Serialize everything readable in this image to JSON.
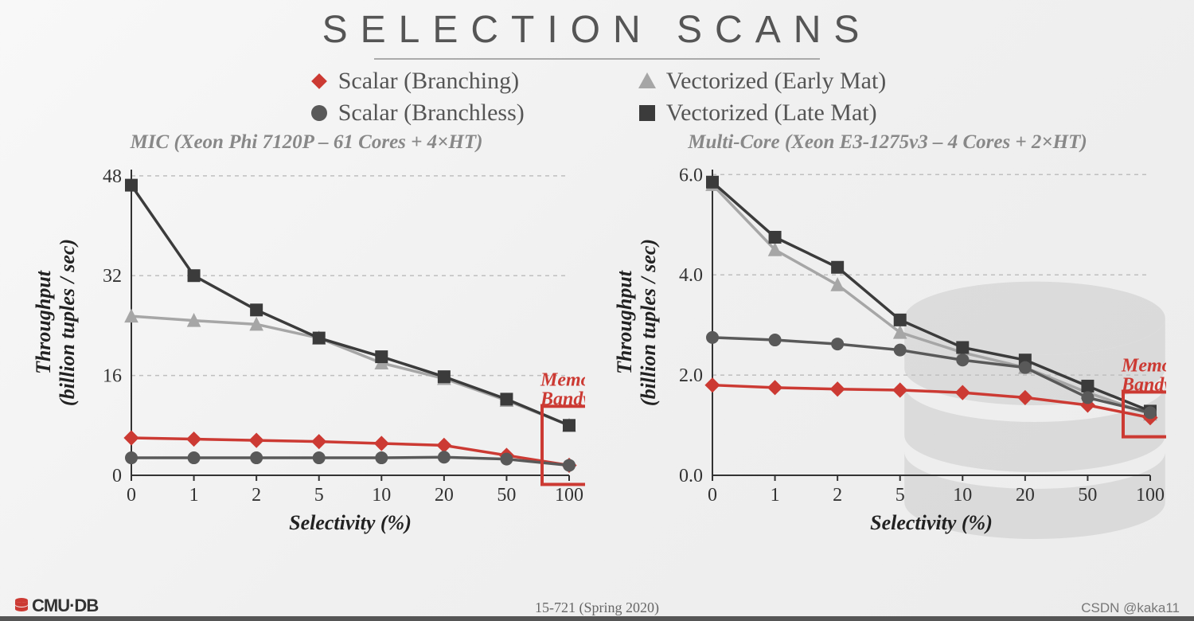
{
  "title": "SELECTION SCANS",
  "legend": [
    {
      "label": "Scalar (Branching)",
      "marker": "diamond",
      "color": "#cc3a33"
    },
    {
      "label": "Scalar (Branchless)",
      "marker": "circle",
      "color": "#595959"
    },
    {
      "label": "Vectorized (Early Mat)",
      "marker": "triangle",
      "color": "#a6a6a6"
    },
    {
      "label": "Vectorized (Late Mat)",
      "marker": "square",
      "color": "#3b3b3b"
    }
  ],
  "x_categories": [
    "0",
    "1",
    "2",
    "5",
    "10",
    "20",
    "50",
    "100"
  ],
  "x_axis_label": "Selectivity (%)",
  "y_axis_label": "Throughput\n(billion tuples / sec)",
  "annotation": {
    "line1": "Memory",
    "line2": "Bandwidth",
    "color": "#cc3a33",
    "box_stroke_width": 4
  },
  "charts": {
    "left": {
      "subtitle": "MIC (Xeon Phi 7120P – 61 Cores + 4×HT)",
      "y_ticks": [
        0,
        16,
        32,
        48
      ],
      "ylim": [
        0,
        49
      ],
      "series": {
        "scalar_branching": {
          "color": "#cc3a33",
          "marker": "diamond",
          "line_width": 3.5,
          "values": [
            6.0,
            5.8,
            5.6,
            5.4,
            5.1,
            4.8,
            3.2,
            1.6
          ]
        },
        "scalar_branchless": {
          "color": "#595959",
          "marker": "circle",
          "line_width": 3.5,
          "values": [
            2.8,
            2.8,
            2.8,
            2.8,
            2.8,
            2.9,
            2.6,
            1.6
          ]
        },
        "vec_early": {
          "color": "#a6a6a6",
          "marker": "triangle",
          "line_width": 3.5,
          "values": [
            25.5,
            24.8,
            24.2,
            22.0,
            18.0,
            15.5,
            12.0,
            8.0
          ]
        },
        "vec_late": {
          "color": "#3b3b3b",
          "marker": "square",
          "line_width": 3.5,
          "values": [
            46.5,
            32.0,
            26.5,
            22.0,
            19.0,
            15.8,
            12.2,
            8.0
          ]
        }
      }
    },
    "right": {
      "subtitle": "Multi-Core (Xeon E3-1275v3 – 4 Cores + 2×HT)",
      "y_ticks": [
        0.0,
        2.0,
        4.0,
        6.0
      ],
      "ylim": [
        0,
        6.1
      ],
      "series": {
        "scalar_branching": {
          "color": "#cc3a33",
          "marker": "diamond",
          "line_width": 3.5,
          "values": [
            1.8,
            1.75,
            1.72,
            1.7,
            1.65,
            1.55,
            1.4,
            1.15
          ]
        },
        "scalar_branchless": {
          "color": "#595959",
          "marker": "circle",
          "line_width": 3.5,
          "values": [
            2.75,
            2.7,
            2.62,
            2.5,
            2.3,
            2.15,
            1.55,
            1.25
          ]
        },
        "vec_early": {
          "color": "#a6a6a6",
          "marker": "triangle",
          "line_width": 3.5,
          "values": [
            5.8,
            4.5,
            3.8,
            2.85,
            2.45,
            2.15,
            1.65,
            1.22
          ]
        },
        "vec_late": {
          "color": "#3b3b3b",
          "marker": "square",
          "line_width": 3.5,
          "values": [
            5.85,
            4.75,
            4.15,
            3.1,
            2.55,
            2.3,
            1.78,
            1.28
          ]
        }
      }
    }
  },
  "chart_style": {
    "grid_color": "#bfbfbf",
    "grid_dash": "5,5",
    "axis_color": "#333",
    "tick_fontsize": 24,
    "axis_label_fontsize": 26,
    "subtitle_fontsize": 25,
    "marker_size": 8,
    "plot_bg": "transparent"
  },
  "footer": {
    "left": "CMU·DB",
    "center": "15-721 (Spring 2020)",
    "right": "CSDN @kaka11"
  }
}
